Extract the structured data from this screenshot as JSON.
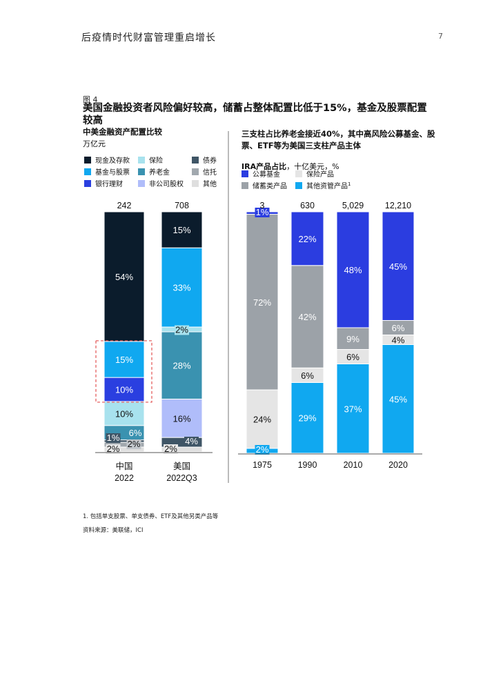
{
  "header": {
    "title": "后疫情时代财富管理重启增长",
    "page_number": "7"
  },
  "figure": {
    "label": "图 4",
    "title": "美国金融投资者风险偏好较高，储蓄占整体配置比低于15%，基金及股票配置较高"
  },
  "left_chart": {
    "subtitle": "中美金融资产配置比较",
    "unit": "万亿元"
  },
  "right_chart": {
    "subtitle": "三支柱占比养老金接近40%，其中高风险公募基金、股票、ETF等为美国三支柱产品主体",
    "unit_bold": "IRA产品占比",
    "unit_rest": "，十亿美元，%"
  },
  "footnote": "1. 包括单支股票、单支债券、ETF及其他另类产品等",
  "source": "资料来源：美联储，ICI",
  "colors": {
    "cash": "#0b1c2c",
    "insurance": "#a8e2ee",
    "bonds": "#3f5566",
    "funds": "#10a8f0",
    "pension": "#3a92b0",
    "trust": "#a1a8ae",
    "bank_wm": "#2a3fe0",
    "private_equity": "#b0bdfa",
    "other": "#dfdfdf",
    "ira_funds": "#2b3de0",
    "ira_insurance": "#e5e5e5",
    "ira_savings": "#9ca2a8",
    "ira_other": "#10a8f0"
  },
  "chart_data": [
    {
      "type": "bar",
      "stacked": true,
      "title": "中美金融资产配置比较",
      "unit": "万亿元",
      "categories": [
        "中国\n2022",
        "美国\n2022Q3"
      ],
      "category_lines": [
        [
          "中国",
          "2022"
        ],
        [
          "美国",
          "2022Q3"
        ]
      ],
      "totals": [
        "242",
        "708"
      ],
      "legend": [
        {
          "key": "cash",
          "name": "现金及存款"
        },
        {
          "key": "insurance",
          "name": "保险"
        },
        {
          "key": "bonds",
          "name": "债券"
        },
        {
          "key": "funds",
          "name": "基金与股票"
        },
        {
          "key": "pension",
          "name": "养老金"
        },
        {
          "key": "trust",
          "name": "信托"
        },
        {
          "key": "bank_wm",
          "name": "银行理财"
        },
        {
          "key": "private_equity",
          "name": "非公司股权"
        },
        {
          "key": "other",
          "name": "其他"
        }
      ],
      "bars": [
        {
          "segments": [
            {
              "key": "other",
              "value": 2,
              "label": "2%"
            },
            {
              "key": "trust",
              "value": 2,
              "label": "2%"
            },
            {
              "key": "bonds",
              "value": 1,
              "label": "1%"
            },
            {
              "key": "pension",
              "value": 6,
              "label": "6%"
            },
            {
              "key": "insurance",
              "value": 10,
              "label": "10%"
            },
            {
              "key": "bank_wm",
              "value": 10,
              "label": "10%"
            },
            {
              "key": "funds",
              "value": 15,
              "label": "15%"
            },
            {
              "key": "cash",
              "value": 54,
              "label": "54%"
            }
          ]
        },
        {
          "segments": [
            {
              "key": "other",
              "value": 2,
              "label": "2%"
            },
            {
              "key": "bonds",
              "value": 4,
              "label": "4%"
            },
            {
              "key": "private_equity",
              "value": 16,
              "label": "16%"
            },
            {
              "key": "pension",
              "value": 28,
              "label": "28%"
            },
            {
              "key": "insurance",
              "value": 2,
              "label": "2%"
            },
            {
              "key": "funds",
              "value": 33,
              "label": "33%"
            },
            {
              "key": "cash",
              "value": 15,
              "label": "15%"
            }
          ]
        }
      ],
      "highlight": "中国 2022 基金与股票 + 银行理财 (dashed red box)"
    },
    {
      "type": "bar",
      "stacked": true,
      "title": "三支柱占比养老金接近40%，其中高风险公募基金、股票、ETF等为美国三支柱产品主体",
      "unit": "IRA产品占比，十亿美元，%",
      "categories": [
        "1975",
        "1990",
        "2010",
        "2020"
      ],
      "totals": [
        "3",
        "630",
        "5,029",
        "12,210"
      ],
      "legend": [
        {
          "key": "ira_funds",
          "name": "公募基金"
        },
        {
          "key": "ira_insurance",
          "name": "保险产品"
        },
        {
          "key": "ira_savings",
          "name": "储蓄类产品"
        },
        {
          "key": "ira_other",
          "name": "其他资管产品",
          "sup": "1"
        }
      ],
      "bars": [
        {
          "segments": [
            {
              "key": "ira_other",
              "value": 2,
              "label": "2%"
            },
            {
              "key": "ira_insurance",
              "value": 24,
              "label": "24%"
            },
            {
              "key": "ira_savings",
              "value": 72,
              "label": "72%"
            },
            {
              "key": "ira_funds",
              "value": 1,
              "label": "1%"
            }
          ]
        },
        {
          "segments": [
            {
              "key": "ira_other",
              "value": 29,
              "label": "29%"
            },
            {
              "key": "ira_insurance",
              "value": 6,
              "label": "6%"
            },
            {
              "key": "ira_savings",
              "value": 42,
              "label": "42%"
            },
            {
              "key": "ira_funds",
              "value": 22,
              "label": "22%"
            }
          ]
        },
        {
          "segments": [
            {
              "key": "ira_other",
              "value": 37,
              "label": "37%"
            },
            {
              "key": "ira_insurance",
              "value": 6,
              "label": "6%"
            },
            {
              "key": "ira_savings",
              "value": 9,
              "label": "9%"
            },
            {
              "key": "ira_funds",
              "value": 48,
              "label": "48%"
            }
          ]
        },
        {
          "segments": [
            {
              "key": "ira_other",
              "value": 45,
              "label": "45%"
            },
            {
              "key": "ira_insurance",
              "value": 4,
              "label": "4%"
            },
            {
              "key": "ira_savings",
              "value": 6,
              "label": "6%"
            },
            {
              "key": "ira_funds",
              "value": 45,
              "label": "45%"
            }
          ]
        }
      ]
    }
  ]
}
